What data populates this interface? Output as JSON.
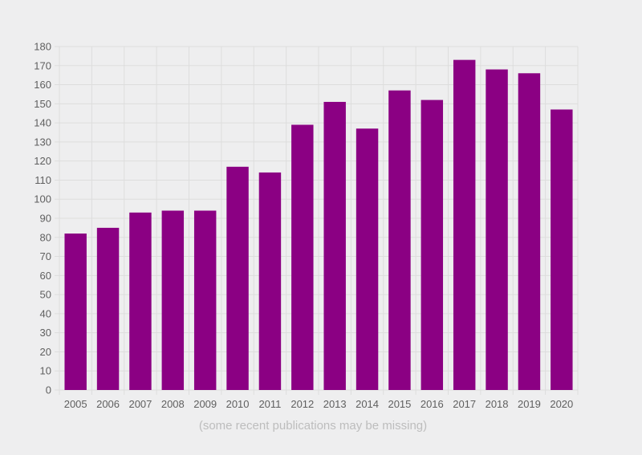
{
  "chart_data": {
    "type": "bar",
    "title": "",
    "xlabel": "",
    "ylabel": "",
    "categories": [
      "2005",
      "2006",
      "2007",
      "2008",
      "2009",
      "2010",
      "2011",
      "2012",
      "2013",
      "2014",
      "2015",
      "2016",
      "2017",
      "2018",
      "2019",
      "2020"
    ],
    "values": [
      82,
      85,
      93,
      94,
      94,
      117,
      114,
      139,
      151,
      137,
      157,
      152,
      173,
      168,
      166,
      147
    ],
    "ylim": [
      0,
      180
    ],
    "yticks": [
      0,
      10,
      20,
      30,
      40,
      50,
      60,
      70,
      80,
      90,
      100,
      110,
      120,
      130,
      140,
      150,
      160,
      170,
      180
    ],
    "grid": true,
    "legend": "none",
    "bar_color": "#8b0083",
    "grid_color": "#dddddd",
    "note": "(some recent publications may be missing)"
  }
}
